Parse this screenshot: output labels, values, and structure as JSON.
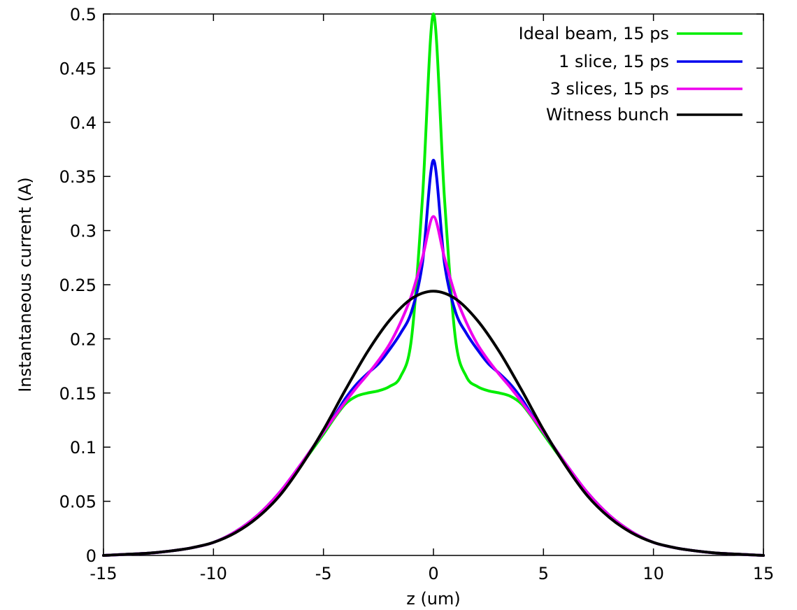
{
  "chart_data": {
    "type": "line",
    "title": "",
    "xlabel": "z (um)",
    "ylabel": "Instantaneous current (A)",
    "xlim": [
      -15,
      15
    ],
    "ylim": [
      0,
      0.5
    ],
    "xticks": [
      -15,
      -10,
      -5,
      0,
      5,
      10,
      15
    ],
    "yticks": [
      0,
      0.05,
      0.1,
      0.15,
      0.2,
      0.25,
      0.3,
      0.35,
      0.4,
      0.45,
      0.5
    ],
    "xtick_labels": [
      "-15",
      "-10",
      "-5",
      "0",
      "5",
      "10",
      "15"
    ],
    "ytick_labels": [
      "0",
      "0.05",
      "0.1",
      "0.15",
      "0.2",
      "0.25",
      "0.3",
      "0.35",
      "0.4",
      "0.45",
      "0.5"
    ],
    "grid": false,
    "legend_position": "top-right",
    "series": [
      {
        "name": "Ideal beam, 15 ps",
        "color": "#00ee00",
        "x": [
          -15,
          -13,
          -12,
          -11,
          -10,
          -9,
          -8,
          -7,
          -6,
          -5,
          -4.5,
          -4,
          -3.5,
          -3,
          -2.5,
          -2,
          -1.5,
          -1,
          -0.5,
          0,
          0.5,
          1,
          1.5,
          2,
          2.5,
          3,
          3.5,
          4,
          4.5,
          5,
          6,
          7,
          8,
          9,
          10,
          11,
          12,
          13,
          15
        ],
        "y": [
          0.0,
          0.002,
          0.004,
          0.007,
          0.012,
          0.022,
          0.037,
          0.058,
          0.084,
          0.112,
          0.127,
          0.14,
          0.147,
          0.15,
          0.152,
          0.156,
          0.165,
          0.2,
          0.33,
          0.5,
          0.33,
          0.2,
          0.165,
          0.156,
          0.152,
          0.15,
          0.147,
          0.14,
          0.127,
          0.112,
          0.084,
          0.058,
          0.037,
          0.022,
          0.012,
          0.007,
          0.004,
          0.002,
          0.0
        ]
      },
      {
        "name": "1 slice, 15 ps",
        "color": "#0000ee",
        "x": [
          -15,
          -13,
          -12,
          -11,
          -10,
          -9,
          -8,
          -7,
          -6,
          -5,
          -4.5,
          -4,
          -3.5,
          -3,
          -2.5,
          -2,
          -1.5,
          -1,
          -0.5,
          0,
          0.5,
          1,
          1.5,
          2,
          2.5,
          3,
          3.5,
          4,
          4.5,
          5,
          6,
          7,
          8,
          9,
          10,
          11,
          12,
          13,
          15
        ],
        "y": [
          0.0,
          0.002,
          0.004,
          0.007,
          0.012,
          0.022,
          0.037,
          0.058,
          0.085,
          0.114,
          0.129,
          0.145,
          0.158,
          0.168,
          0.177,
          0.19,
          0.205,
          0.225,
          0.27,
          0.365,
          0.27,
          0.225,
          0.205,
          0.19,
          0.177,
          0.168,
          0.158,
          0.145,
          0.129,
          0.114,
          0.085,
          0.058,
          0.037,
          0.022,
          0.012,
          0.007,
          0.004,
          0.002,
          0.0
        ]
      },
      {
        "name": "3 slices, 15 ps",
        "color": "#ee00ee",
        "x": [
          -15,
          -13,
          -12,
          -11,
          -10,
          -9,
          -8,
          -7,
          -6,
          -5,
          -4.5,
          -4,
          -3.5,
          -3,
          -2.5,
          -2,
          -1.5,
          -1,
          -0.5,
          0,
          0.5,
          1,
          1.5,
          2,
          2.5,
          3,
          3.5,
          4,
          4.5,
          5,
          6,
          7,
          8,
          9,
          10,
          11,
          12,
          13,
          15
        ],
        "y": [
          0.0,
          0.002,
          0.004,
          0.007,
          0.012,
          0.022,
          0.037,
          0.058,
          0.085,
          0.114,
          0.128,
          0.142,
          0.155,
          0.167,
          0.18,
          0.195,
          0.215,
          0.24,
          0.275,
          0.313,
          0.275,
          0.24,
          0.215,
          0.195,
          0.18,
          0.167,
          0.155,
          0.142,
          0.128,
          0.114,
          0.085,
          0.058,
          0.037,
          0.022,
          0.012,
          0.007,
          0.004,
          0.002,
          0.0
        ]
      },
      {
        "name": "Witness bunch",
        "color": "#000000",
        "x": [
          -15,
          -14,
          -13,
          -12,
          -11,
          -10,
          -9,
          -8,
          -7,
          -6,
          -5,
          -4,
          -3,
          -2,
          -1,
          0,
          1,
          2,
          3,
          4,
          5,
          6,
          7,
          8,
          9,
          10,
          11,
          12,
          13,
          14,
          15
        ],
        "y": [
          0.0,
          0.001,
          0.002,
          0.004,
          0.007,
          0.012,
          0.021,
          0.035,
          0.055,
          0.083,
          0.116,
          0.153,
          0.188,
          0.217,
          0.237,
          0.244,
          0.237,
          0.217,
          0.188,
          0.153,
          0.116,
          0.083,
          0.055,
          0.035,
          0.021,
          0.012,
          0.007,
          0.004,
          0.002,
          0.001,
          0.0
        ]
      }
    ]
  }
}
